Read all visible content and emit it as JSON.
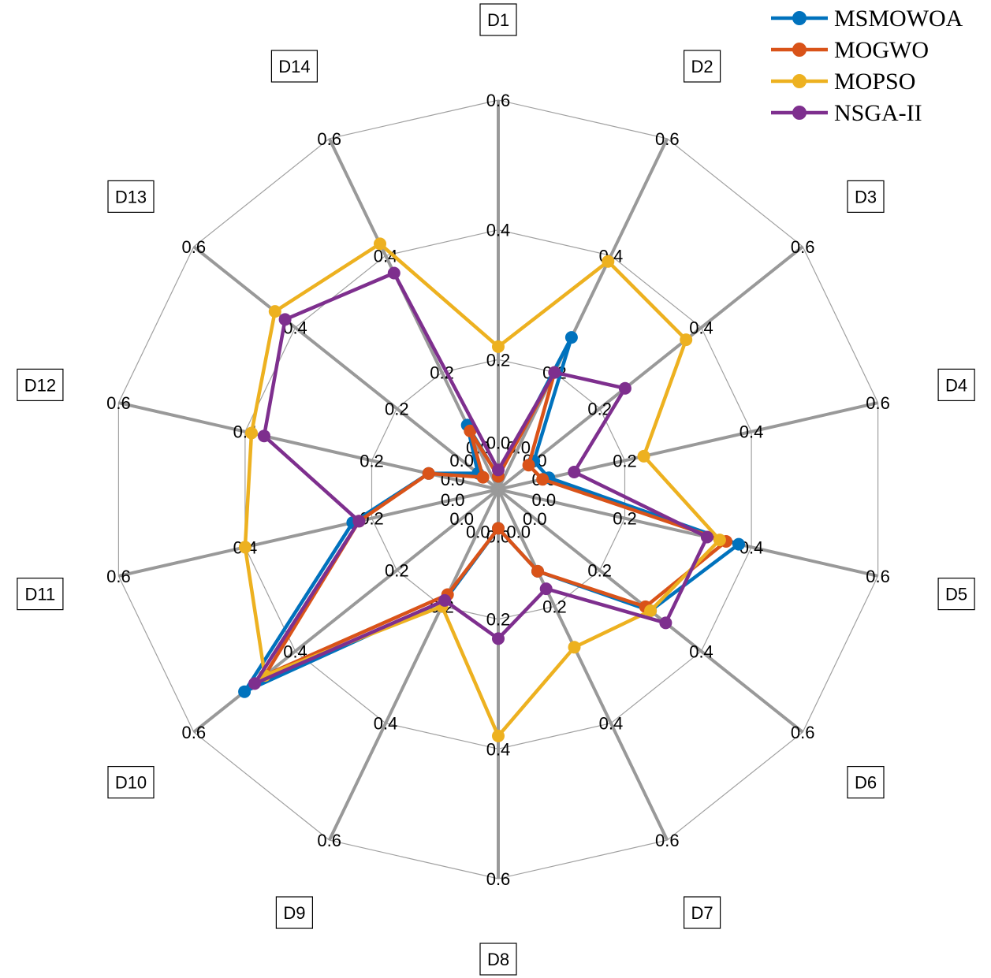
{
  "chart_data": {
    "type": "radar",
    "categories": [
      "D1",
      "D2",
      "D3",
      "D4",
      "D5",
      "D6",
      "D7",
      "D8",
      "D9",
      "D10",
      "D11",
      "D12",
      "D13",
      "D14"
    ],
    "rlim": [
      0,
      0.6
    ],
    "rings": [
      0.2,
      0.4,
      0.6
    ],
    "tick_labels": [
      "0.0",
      "0.2",
      "0.4",
      "0.6"
    ],
    "grid": true,
    "legend_position": "top-right",
    "series": [
      {
        "name": "MSMOWOA",
        "color": "#0072BD",
        "values": [
          0.02,
          0.26,
          0.07,
          0.08,
          0.38,
          0.3,
          0.14,
          0.06,
          0.19,
          0.5,
          0.23,
          0.11,
          0.04,
          0.11
        ]
      },
      {
        "name": "MOGWO",
        "color": "#D95319",
        "values": [
          0.02,
          0.2,
          0.06,
          0.07,
          0.36,
          0.29,
          0.14,
          0.06,
          0.18,
          0.46,
          0.22,
          0.11,
          0.03,
          0.1
        ]
      },
      {
        "name": "MOPSO",
        "color": "#EDB120",
        "values": [
          0.22,
          0.39,
          0.37,
          0.23,
          0.35,
          0.3,
          0.27,
          0.38,
          0.2,
          0.46,
          0.4,
          0.39,
          0.44,
          0.42
        ]
      },
      {
        "name": "NSGA-II",
        "color": "#7E2F8E",
        "values": [
          0.03,
          0.2,
          0.25,
          0.12,
          0.33,
          0.33,
          0.17,
          0.23,
          0.19,
          0.48,
          0.22,
          0.37,
          0.42,
          0.37
        ]
      }
    ]
  }
}
